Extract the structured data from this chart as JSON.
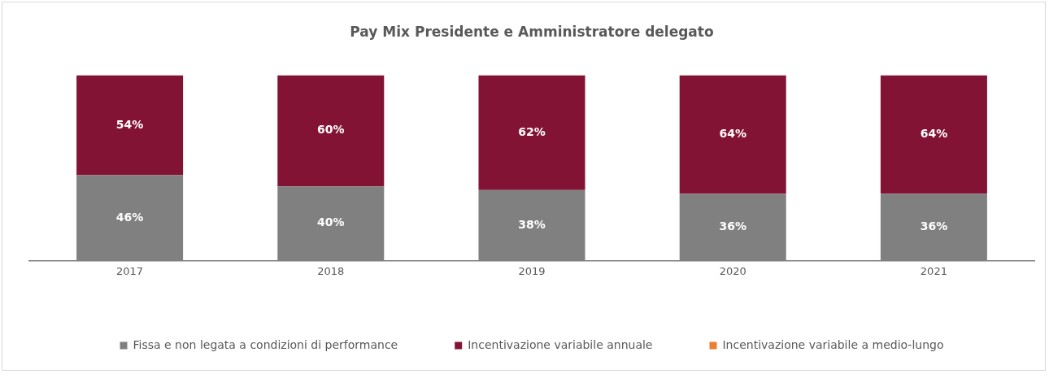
{
  "chart_data": {
    "type": "bar",
    "title": "Pay Mix Presidente e Amministratore delegato",
    "categories": [
      "2017",
      "2018",
      "2019",
      "2020",
      "2021"
    ],
    "stacked": true,
    "legend": "bottom",
    "grid": false,
    "series": [
      {
        "name": "Fissa e non legata a condizioni di performance",
        "color": "#808080",
        "values": [
          46,
          40,
          38,
          36,
          36
        ],
        "value_labels": [
          "46%",
          "40%",
          "38%",
          "36%",
          "36%"
        ]
      },
      {
        "name": "Incentivazione variabile annuale",
        "color": "#831335",
        "values": [
          54,
          60,
          62,
          64,
          64
        ],
        "value_labels": [
          "54%",
          "60%",
          "62%",
          "64%",
          "64%"
        ]
      },
      {
        "name": "Incentivazione variabile a medio-lungo",
        "color": "#ed7d31",
        "values": [
          0,
          0,
          0,
          0,
          0
        ],
        "value_labels": [
          null,
          null,
          null,
          null,
          null
        ]
      }
    ]
  }
}
